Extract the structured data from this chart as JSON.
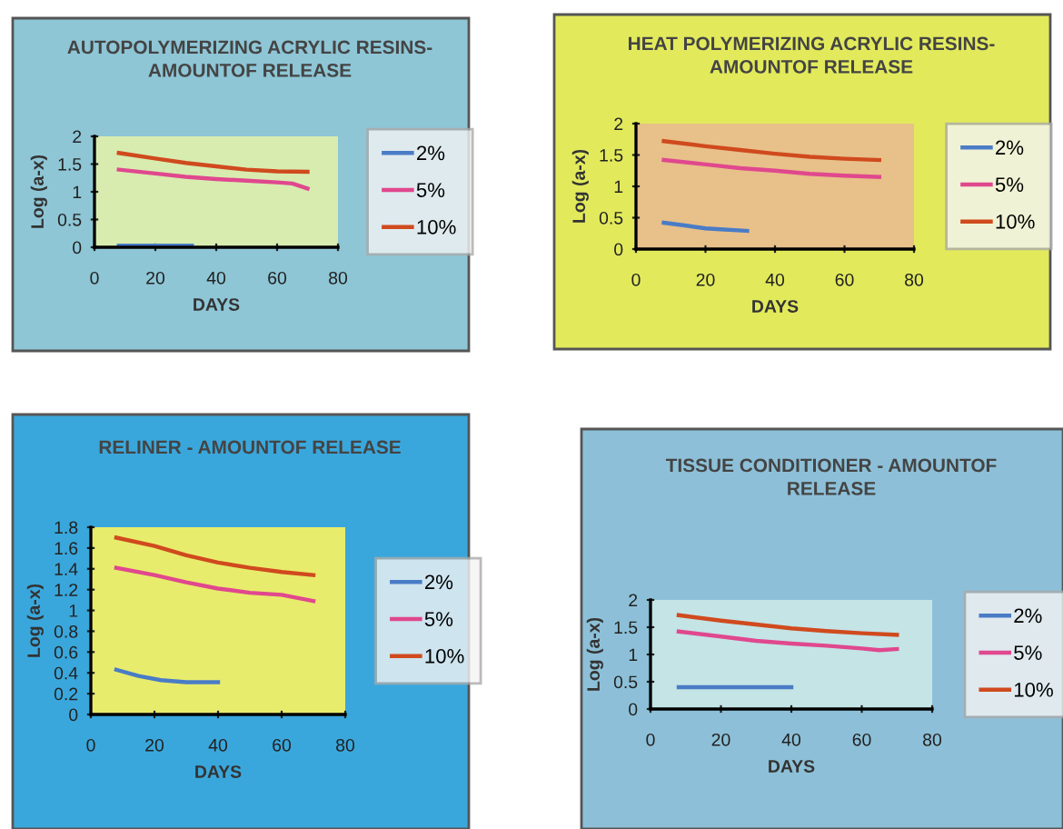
{
  "chart_data": [
    {
      "type": "line",
      "title": "AUTOPOLYMERIZING ACRYLIC RESINS-\nAMOUNTOF RELEASE",
      "xlabel": "DAYS",
      "ylabel": "Log (a-x)",
      "xlim": [
        0,
        80
      ],
      "xticks": [
        0,
        20,
        40,
        60,
        80
      ],
      "ylim": [
        0,
        2
      ],
      "yticks": [
        0,
        0.5,
        1,
        1.5,
        2
      ],
      "legend": "right",
      "series": [
        {
          "name": "2%",
          "color": "#4a7cc6",
          "x": [
            8,
            32
          ],
          "values": [
            0.03,
            0.03
          ]
        },
        {
          "name": "5%",
          "color": "#e0488e",
          "x": [
            8,
            20,
            30,
            40,
            50,
            60,
            65,
            70
          ],
          "values": [
            1.4,
            1.33,
            1.27,
            1.23,
            1.2,
            1.17,
            1.15,
            1.06
          ]
        },
        {
          "name": "10%",
          "color": "#d04a1e",
          "x": [
            8,
            20,
            30,
            40,
            50,
            60,
            70
          ],
          "values": [
            1.7,
            1.6,
            1.52,
            1.46,
            1.4,
            1.37,
            1.36
          ]
        }
      ]
    },
    {
      "type": "line",
      "title": "HEAT POLYMERIZING ACRYLIC RESINS-\nAMOUNTOF RELEASE",
      "xlabel": "DAYS",
      "ylabel": "Log (a-x)",
      "xlim": [
        0,
        80
      ],
      "xticks": [
        0,
        20,
        40,
        60,
        80
      ],
      "ylim": [
        0,
        2
      ],
      "yticks": [
        0,
        0.5,
        1,
        1.5,
        2
      ],
      "legend": "right",
      "series": [
        {
          "name": "2%",
          "color": "#4a7cc6",
          "x": [
            8,
            15,
            20,
            32
          ],
          "values": [
            0.42,
            0.37,
            0.33,
            0.29
          ]
        },
        {
          "name": "5%",
          "color": "#e0488e",
          "x": [
            8,
            20,
            30,
            40,
            50,
            60,
            70
          ],
          "values": [
            1.42,
            1.35,
            1.29,
            1.25,
            1.2,
            1.17,
            1.15
          ]
        },
        {
          "name": "10%",
          "color": "#d04a1e",
          "x": [
            8,
            20,
            30,
            40,
            50,
            60,
            70
          ],
          "values": [
            1.72,
            1.64,
            1.58,
            1.52,
            1.47,
            1.44,
            1.42
          ]
        }
      ]
    },
    {
      "type": "line",
      "title": "RELINER - AMOUNTOF RELEASE",
      "xlabel": "DAYS",
      "ylabel": "Log (a-x)",
      "xlim": [
        0,
        80
      ],
      "xticks": [
        0,
        20,
        40,
        60,
        80
      ],
      "ylim": [
        0,
        1.8
      ],
      "yticks": [
        0,
        0.2,
        0.4,
        0.6,
        0.8,
        1,
        1.2,
        1.4,
        1.6,
        1.8
      ],
      "legend": "right",
      "series": [
        {
          "name": "2%",
          "color": "#4a7cc6",
          "x": [
            8,
            15,
            22,
            30,
            40
          ],
          "values": [
            0.43,
            0.37,
            0.33,
            0.31,
            0.31
          ]
        },
        {
          "name": "5%",
          "color": "#e0488e",
          "x": [
            8,
            20,
            30,
            40,
            50,
            60,
            70
          ],
          "values": [
            1.41,
            1.34,
            1.27,
            1.21,
            1.17,
            1.15,
            1.09
          ]
        },
        {
          "name": "10%",
          "color": "#d04a1e",
          "x": [
            8,
            20,
            30,
            40,
            50,
            60,
            70
          ],
          "values": [
            1.7,
            1.62,
            1.53,
            1.46,
            1.41,
            1.37,
            1.34
          ]
        }
      ]
    },
    {
      "type": "line",
      "title": "TISSUE CONDITIONER - AMOUNTOF\nRELEASE",
      "xlabel": "DAYS",
      "ylabel": "Log (a-x)",
      "xlim": [
        0,
        80
      ],
      "xticks": [
        0,
        20,
        40,
        60,
        80
      ],
      "ylim": [
        0,
        2
      ],
      "yticks": [
        0,
        0.5,
        1,
        1.5,
        2
      ],
      "legend": "right",
      "series": [
        {
          "name": "2%",
          "color": "#4a7cc6",
          "x": [
            8,
            40
          ],
          "values": [
            0.4,
            0.4
          ]
        },
        {
          "name": "5%",
          "color": "#e0488e",
          "x": [
            8,
            20,
            30,
            40,
            50,
            60,
            65,
            70
          ],
          "values": [
            1.42,
            1.33,
            1.25,
            1.2,
            1.16,
            1.11,
            1.08,
            1.1
          ]
        },
        {
          "name": "10%",
          "color": "#d04a1e",
          "x": [
            8,
            20,
            30,
            40,
            50,
            60,
            70
          ],
          "values": [
            1.72,
            1.62,
            1.55,
            1.48,
            1.43,
            1.39,
            1.36
          ]
        }
      ]
    }
  ]
}
